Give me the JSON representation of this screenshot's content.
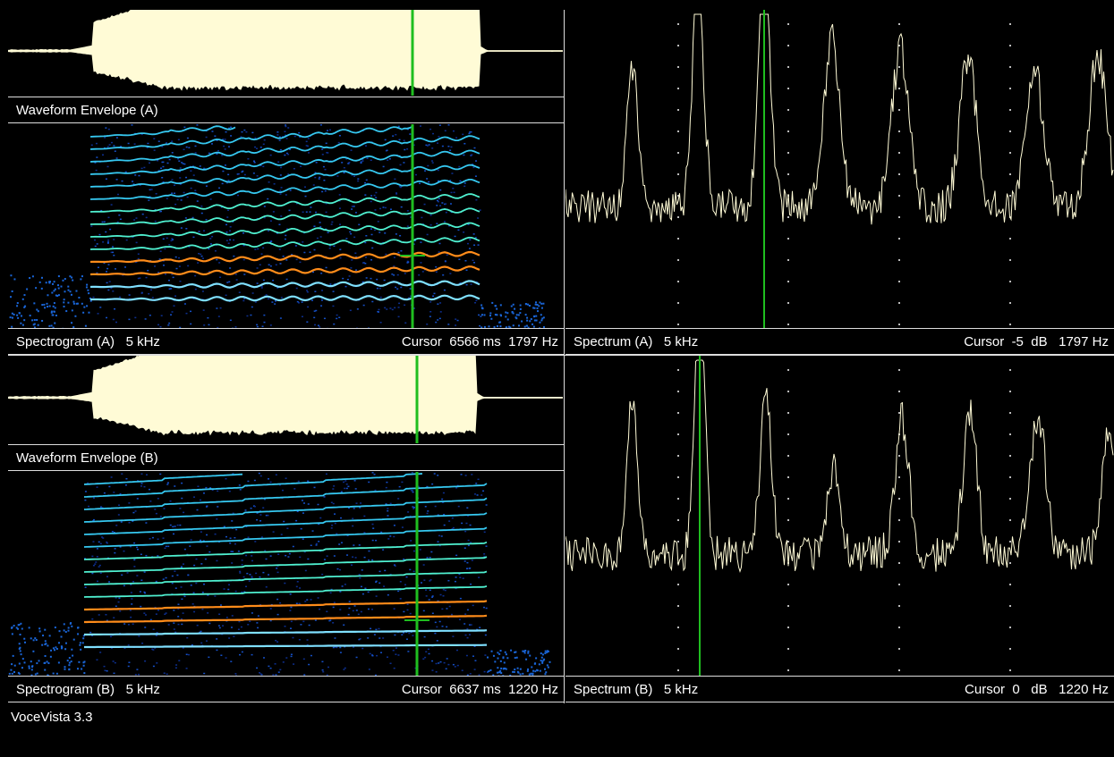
{
  "colors": {
    "envelope": "#fffbd6",
    "spectrum_line": "#fffbd6",
    "cursor": "#1fbe1f",
    "background": "#000000",
    "grid_dot": "#bbbbbb"
  },
  "top": {
    "envelope_label": "Waveform Envelope (A)",
    "spectrogram": {
      "label": "Spectrogram (A)",
      "range": "5 kHz",
      "cursor_label": "Cursor",
      "cursor_time": "6566 ms",
      "cursor_freq": "1797 Hz"
    },
    "spectrum": {
      "label": "Spectrum (A)",
      "range": "5 kHz",
      "cursor_label": "Cursor",
      "cursor_db": "-5",
      "db_unit": "dB",
      "cursor_freq": "1797 Hz"
    }
  },
  "bottom": {
    "envelope_label": "Waveform Envelope (B)",
    "spectrogram": {
      "label": "Spectrogram (B)",
      "range": "5 kHz",
      "cursor_label": "Cursor",
      "cursor_time": "6637 ms",
      "cursor_freq": "1220 Hz"
    },
    "spectrum": {
      "label": "Spectrum (B)",
      "range": "5 kHz",
      "cursor_label": "Cursor",
      "cursor_db": "0",
      "db_unit": "dB",
      "cursor_freq": "1220 Hz"
    }
  },
  "status": {
    "app_name": "VoceVista 3.3"
  }
}
